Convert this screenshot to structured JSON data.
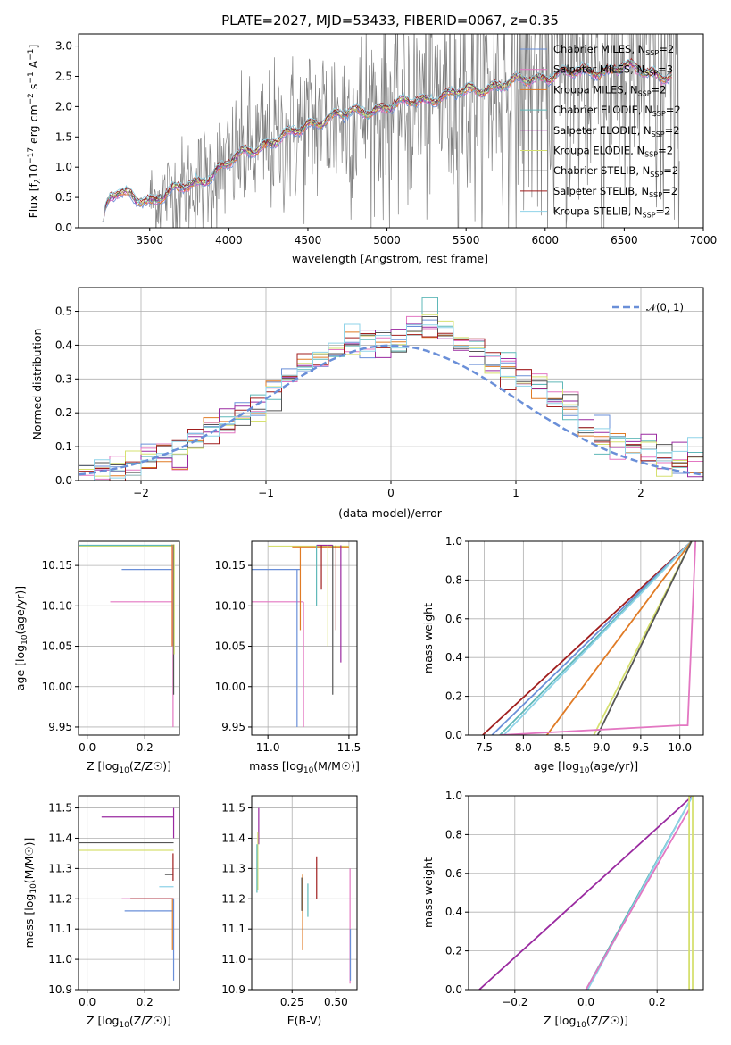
{
  "figure": {
    "title": "PLATE=2027, MJD=53433, FIBERID=0067, z=0.35"
  },
  "colors": {
    "Chabrier MILES": "#6a8fd8",
    "Salpeter MILES": "#e377c2",
    "Kroupa MILES": "#e07b25",
    "Chabrier ELODIE": "#5fb8b8",
    "Salpeter ELODIE": "#9a2aa0",
    "Kroupa ELODIE": "#d6e070",
    "Chabrier STELIB": "#555555",
    "Salpeter STELIB": "#a01e1e",
    "Kroupa STELIB": "#8fd3e8",
    "normal": "#6a8fd8",
    "data": "#808080"
  },
  "chart_data": [
    {
      "id": "spectrum",
      "type": "line",
      "title": "PLATE=2027, MJD=53433, FIBERID=0067, z=0.35",
      "xlabel": "wavelength [Angstrom, rest frame]",
      "ylabel": "Flux [f",
      "ylabel_parts": [
        "Flux [f",
        "λ",
        "10",
        "−17",
        " erg cm",
        "−2",
        " s",
        "−1",
        " A",
        "−1",
        "]"
      ],
      "xlim": [
        3050,
        7000
      ],
      "ylim": [
        0,
        3.2
      ],
      "xticks": [
        "3500",
        "4000",
        "4500",
        "5000",
        "5500",
        "6000",
        "6500",
        "7000"
      ],
      "yticks": [
        "0.0",
        "0.5",
        "1.0",
        "1.5",
        "2.0",
        "2.5",
        "3.0"
      ],
      "legend_position": "top-right",
      "legend": [
        {
          "name": "Chabrier MILES",
          "nssp": "2"
        },
        {
          "name": "Salpeter MILES",
          "nssp": "3"
        },
        {
          "name": "Kroupa MILES",
          "nssp": "2"
        },
        {
          "name": "Chabrier ELODIE",
          "nssp": "2"
        },
        {
          "name": "Salpeter ELODIE",
          "nssp": "2"
        },
        {
          "name": "Kroupa ELODIE",
          "nssp": "2"
        },
        {
          "name": "Chabrier STELIB",
          "nssp": "2"
        },
        {
          "name": "Salpeter STELIB",
          "nssp": "2"
        },
        {
          "name": "Kroupa STELIB",
          "nssp": "2"
        }
      ],
      "nssp_label": "N",
      "nssp_sub": "SSP",
      "continuum_points": {
        "x": [
          3200,
          3250,
          3300,
          3400,
          3500,
          3600,
          3700,
          3800,
          3900,
          4000,
          4100,
          4200,
          4300,
          4400,
          4500,
          4600,
          4700,
          4800,
          4900,
          5000,
          5100,
          5200,
          5300,
          5400,
          5500,
          5600,
          5700,
          5800,
          5900,
          6000,
          6100,
          6200,
          6300,
          6400,
          6500,
          6600,
          6700,
          6800
        ],
        "y": [
          0.15,
          0.5,
          0.55,
          0.5,
          0.45,
          0.55,
          0.65,
          0.75,
          0.9,
          1.05,
          1.25,
          1.35,
          1.45,
          1.55,
          1.7,
          1.8,
          1.85,
          1.9,
          1.95,
          2.0,
          2.05,
          2.1,
          2.15,
          2.2,
          2.25,
          2.3,
          2.35,
          2.4,
          2.45,
          2.5,
          2.55,
          2.55,
          2.6,
          2.6,
          2.65,
          2.6,
          2.55,
          2.5
        ]
      },
      "data_range": [
        3500,
        6850
      ]
    },
    {
      "id": "residuals",
      "type": "line",
      "xlabel": "(data-model)/error",
      "ylabel": "Normed distribution",
      "xlim": [
        -2.5,
        2.5
      ],
      "ylim": [
        0,
        0.57
      ],
      "xticks": [
        "−2",
        "−1",
        "0",
        "1",
        "2"
      ],
      "yticks": [
        "0.0",
        "0.1",
        "0.2",
        "0.3",
        "0.4",
        "0.5"
      ],
      "legend_position": "top-right",
      "legend": [
        {
          "name": "𝒩(0, 1)"
        }
      ],
      "bin_width": 0.125,
      "hist_values": [
        0.02,
        0.025,
        0.04,
        0.05,
        0.06,
        0.08,
        0.09,
        0.12,
        0.14,
        0.17,
        0.2,
        0.22,
        0.26,
        0.29,
        0.33,
        0.36,
        0.38,
        0.4,
        0.41,
        0.41,
        0.42,
        0.43,
        0.45,
        0.44,
        0.41,
        0.39,
        0.36,
        0.33,
        0.3,
        0.28,
        0.24,
        0.2,
        0.17,
        0.14,
        0.12,
        0.1,
        0.08,
        0.07,
        0.06,
        0.05
      ]
    },
    {
      "id": "age-vs-z",
      "type": "scatter",
      "xlabel": "Z [log",
      "ylabel": "age  [log",
      "xlim": [
        -0.03,
        0.32
      ],
      "ylim": [
        9.94,
        10.18
      ],
      "xticks": [
        "0.0",
        "0.2"
      ],
      "yticks": [
        "9.95",
        "10.00",
        "10.05",
        "10.10",
        "10.15"
      ]
    },
    {
      "id": "age-vs-mass",
      "type": "scatter",
      "xlabel": "mass [log",
      "xlim": [
        10.9,
        11.55
      ],
      "ylim": [
        9.94,
        10.18
      ],
      "xticks": [
        "11.0",
        "11.5"
      ],
      "yticks": [
        "9.95",
        "10.00",
        "10.05",
        "10.10",
        "10.15"
      ]
    },
    {
      "id": "mass-weight-vs-age",
      "type": "line",
      "xlabel": "age  [log",
      "ylabel": "mass weight",
      "xlim": [
        7.3,
        10.3
      ],
      "ylim": [
        0,
        1.0
      ],
      "xticks": [
        "7.5",
        "8.0",
        "8.5",
        "9.0",
        "9.5",
        "10.0"
      ],
      "yticks": [
        "0.0",
        "0.2",
        "0.4",
        "0.6",
        "0.8",
        "1.0"
      ],
      "series": [
        {
          "key": "Salpeter STELIB",
          "x": [
            7.48,
            10.15
          ],
          "y": [
            0,
            1.0
          ]
        },
        {
          "key": "Chabrier MILES",
          "x": [
            7.6,
            10.15
          ],
          "y": [
            0,
            1.0
          ]
        },
        {
          "key": "Chabrier ELODIE",
          "x": [
            7.7,
            10.15
          ],
          "y": [
            0,
            1.0
          ]
        },
        {
          "key": "Kroupa STELIB",
          "x": [
            7.75,
            10.15
          ],
          "y": [
            0,
            1.0
          ]
        },
        {
          "key": "Kroupa MILES",
          "x": [
            8.3,
            10.15
          ],
          "y": [
            0,
            1.0
          ]
        },
        {
          "key": "Kroupa ELODIE",
          "x": [
            8.9,
            10.15
          ],
          "y": [
            0,
            1.0
          ]
        },
        {
          "key": "Chabrier STELIB",
          "x": [
            8.95,
            10.15
          ],
          "y": [
            0,
            1.0
          ]
        },
        {
          "key": "Salpeter MILES",
          "x": [
            7.7,
            10.0,
            10.1,
            10.2
          ],
          "y": [
            0,
            0.05,
            0.05,
            1.0
          ]
        }
      ]
    },
    {
      "id": "mass-vs-z",
      "type": "scatter",
      "xlabel": "Z [log",
      "ylabel": "mass [log",
      "xlim": [
        -0.03,
        0.32
      ],
      "ylim": [
        10.9,
        11.54
      ],
      "xticks": [
        "0.0",
        "0.2"
      ],
      "yticks": [
        "10.9",
        "11.0",
        "11.1",
        "11.2",
        "11.3",
        "11.4",
        "11.5"
      ]
    },
    {
      "id": "mass-vs-ebv",
      "type": "scatter",
      "xlabel": "E(B-V)",
      "xlim": [
        0.02,
        0.62
      ],
      "ylim": [
        10.9,
        11.54
      ],
      "xticks": [
        "0.25",
        "0.50"
      ],
      "yticks": [
        "10.9",
        "11.0",
        "11.1",
        "11.2",
        "11.3",
        "11.4",
        "11.5"
      ]
    },
    {
      "id": "mass-weight-vs-z",
      "type": "line",
      "xlabel": "Z [log",
      "ylabel": "mass weight",
      "xlim": [
        -0.33,
        0.33
      ],
      "ylim": [
        0,
        1.0
      ],
      "xticks": [
        "−0.2",
        "0.0",
        "0.2"
      ],
      "yticks": [
        "0.0",
        "0.2",
        "0.4",
        "0.6",
        "0.8",
        "1.0"
      ],
      "series": [
        {
          "key": "Salpeter ELODIE",
          "x": [
            -0.3,
            0.3
          ],
          "y": [
            0,
            1.0
          ]
        },
        {
          "key": "Chabrier ELODIE",
          "x": [
            0.0,
            0.3
          ],
          "y": [
            0,
            1.0
          ]
        },
        {
          "key": "Kroupa STELIB",
          "x": [
            0.005,
            0.3
          ],
          "y": [
            0,
            1.0
          ]
        },
        {
          "key": "Salpeter MILES",
          "x": [
            0.0,
            0.29
          ],
          "y": [
            0,
            0.93
          ]
        },
        {
          "key": "Kroupa ELODIE",
          "x": [
            0.29,
            0.29,
            0.3,
            0.3
          ],
          "y": [
            0,
            1.0,
            1.0,
            0
          ]
        }
      ]
    }
  ]
}
